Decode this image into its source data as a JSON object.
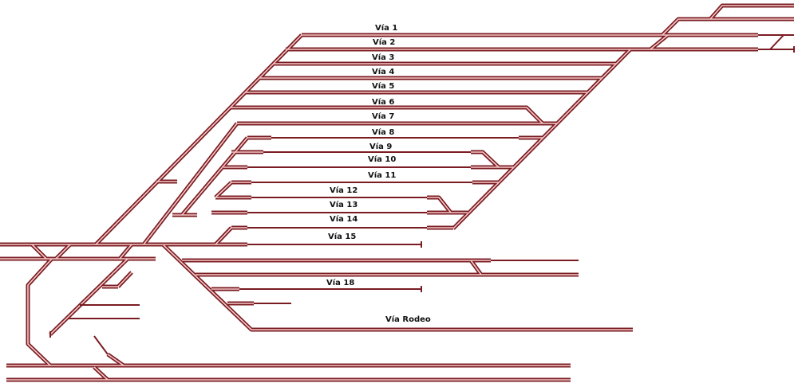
{
  "colors": {
    "rail": "#7a1c22",
    "rail_core": "#f6c9c9",
    "background": "#ffffff"
  },
  "tracks": [
    {
      "id": "via-1",
      "label": "Vía 1"
    },
    {
      "id": "via-2",
      "label": "Vía 2"
    },
    {
      "id": "via-3",
      "label": "Vía 3"
    },
    {
      "id": "via-4",
      "label": "Vía 4"
    },
    {
      "id": "via-5",
      "label": "Vía 5"
    },
    {
      "id": "via-6",
      "label": "Vía 6"
    },
    {
      "id": "via-7",
      "label": "Vía 7"
    },
    {
      "id": "via-8",
      "label": "Vía 8"
    },
    {
      "id": "via-9",
      "label": "Vía 9"
    },
    {
      "id": "via-10",
      "label": "Vía 10"
    },
    {
      "id": "via-11",
      "label": "Vía 11"
    },
    {
      "id": "via-12",
      "label": "Vía 12"
    },
    {
      "id": "via-13",
      "label": "Vía 13"
    },
    {
      "id": "via-14",
      "label": "Vía 14"
    },
    {
      "id": "via-15",
      "label": "Vía 15"
    },
    {
      "id": "via-18",
      "label": "Vía 18"
    },
    {
      "id": "via-rodeo",
      "label": "Vía Rodeo"
    }
  ]
}
